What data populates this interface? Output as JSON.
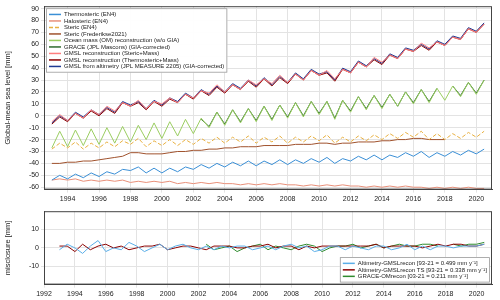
{
  "chart_data": [
    {
      "type": "line",
      "y_label": "Global-mean sea level [mm]",
      "xlim": [
        1992.5,
        2021
      ],
      "xticks": [
        1994,
        1996,
        1998,
        2000,
        2002,
        2004,
        2006,
        2008,
        2010,
        2012,
        2014,
        2016,
        2018,
        2020
      ],
      "ylim": [
        -62,
        92
      ],
      "yticks": [
        -60,
        -50,
        -40,
        -30,
        -20,
        -10,
        0,
        10,
        20,
        30,
        40,
        50,
        60,
        70,
        80,
        90
      ],
      "grid": true,
      "legend": "upper left",
      "x": [
        1993,
        1993.5,
        1994,
        1994.5,
        1995,
        1995.5,
        1996,
        1996.5,
        1997,
        1997.5,
        1998,
        1998.5,
        1999,
        1999.5,
        2000,
        2000.5,
        2001,
        2001.5,
        2002,
        2002.5,
        2003,
        2003.5,
        2004,
        2004.5,
        2005,
        2005.5,
        2006,
        2006.5,
        2007,
        2007.5,
        2008,
        2008.5,
        2009,
        2009.5,
        2010,
        2010.5,
        2011,
        2011.5,
        2012,
        2012.5,
        2013,
        2013.5,
        2014,
        2014.5,
        2015,
        2015.5,
        2016,
        2016.5,
        2017,
        2017.5,
        2018,
        2018.5,
        2019,
        2019.5,
        2020,
        2020.5
      ],
      "series": [
        {
          "name": "Thermosteric (EN4)",
          "color": "#3a8fd6",
          "values": [
            -54,
            -50,
            -53,
            -49,
            -52,
            -48,
            -51,
            -47,
            -49,
            -45,
            -46,
            -43,
            -48,
            -44,
            -48,
            -44,
            -47,
            -43,
            -45,
            -41,
            -44,
            -40,
            -43,
            -39,
            -42,
            -38,
            -42,
            -38,
            -41,
            -37,
            -41,
            -37,
            -40,
            -36,
            -39,
            -35,
            -40,
            -36,
            -38,
            -34,
            -37,
            -33,
            -37,
            -33,
            -35,
            -31,
            -34,
            -30,
            -35,
            -31,
            -34,
            -30,
            -33,
            -29,
            -32,
            -28
          ]
        },
        {
          "name": "Halosteric (EN4)",
          "color": "#e8907a",
          "values": [
            -54,
            -53,
            -54,
            -53,
            -55,
            -54,
            -55,
            -54,
            -55,
            -54,
            -56,
            -55,
            -56,
            -55,
            -56,
            -55,
            -57,
            -56,
            -57,
            -56,
            -57,
            -56,
            -57,
            -57,
            -58,
            -57,
            -58,
            -57,
            -58,
            -57,
            -58,
            -58,
            -59,
            -58,
            -59,
            -58,
            -59,
            -58,
            -59,
            -59,
            -60,
            -59,
            -60,
            -59,
            -60,
            -59,
            -60,
            -60,
            -61,
            -60,
            -61,
            -60,
            -61,
            -60,
            -61,
            -61
          ]
        },
        {
          "name": "Steric (EN4)",
          "color": "#e8b040",
          "line_style": "dashed",
          "values": [
            -28,
            -23,
            -27,
            -22,
            -28,
            -23,
            -27,
            -22,
            -26,
            -21,
            -24,
            -19,
            -26,
            -21,
            -25,
            -20,
            -25,
            -20,
            -24,
            -19,
            -23,
            -18,
            -23,
            -18,
            -22,
            -17,
            -23,
            -18,
            -22,
            -17,
            -23,
            -18,
            -22,
            -17,
            -21,
            -16,
            -23,
            -18,
            -22,
            -17,
            -21,
            -16,
            -20,
            -15,
            -19,
            -14,
            -18,
            -13,
            -20,
            -15,
            -20,
            -15,
            -19,
            -14,
            -18,
            -13
          ]
        },
        {
          "name": "Steric (Frederikse2021)",
          "color": "#a0522d",
          "values": [
            -40,
            -40,
            -39,
            -39,
            -38,
            -38,
            -37,
            -36,
            -35,
            -34,
            -31,
            -31,
            -32,
            -32,
            -32,
            -31,
            -30,
            -30,
            -29,
            -29,
            -28,
            -28,
            -27,
            -27,
            -26,
            -26,
            -26,
            -25,
            -25,
            -25,
            -25,
            -24,
            -24,
            -24,
            -23,
            -23,
            -24,
            -23,
            -23,
            -22,
            -22,
            -22,
            -21,
            -21,
            -20,
            -20,
            -19,
            -19,
            -20,
            -20,
            -20,
            null,
            null,
            null,
            null,
            null
          ]
        },
        {
          "name": "Ocean mass (OM) reconstruction (w/o GIA)",
          "color": "#9acd60",
          "values": [
            -27,
            -13,
            -26,
            -12,
            -25,
            -11,
            -24,
            -10,
            -23,
            -9,
            -22,
            -8,
            -20,
            -6,
            -19,
            -5,
            -17,
            -3,
            -15,
            -2,
            -10,
            3,
            -8,
            5,
            -6,
            6,
            -5,
            8,
            -4,
            9,
            -2,
            11,
            -1,
            12,
            1,
            12,
            -3,
            13,
            3,
            16,
            5,
            17,
            6,
            18,
            8,
            20,
            10,
            22,
            11,
            23,
            13,
            25,
            16,
            28,
            18,
            30
          ]
        },
        {
          "name": "GRACE (JPL Mascons) (GIA-corrected)",
          "color": "#2e6b2e",
          "values": [
            null,
            null,
            null,
            null,
            null,
            null,
            null,
            null,
            null,
            null,
            null,
            null,
            null,
            null,
            null,
            null,
            null,
            null,
            null,
            -3,
            -9,
            3,
            -7,
            5,
            -5,
            6,
            -4,
            8,
            -3,
            9,
            -1,
            11,
            0,
            12,
            2,
            12,
            -2,
            13,
            4,
            16,
            6,
            17,
            7,
            18,
            8,
            20,
            11,
            22,
            12,
            23,
            null,
            25,
            17,
            28,
            19,
            30
          ]
        },
        {
          "name": "GMSL reconstruction (Steric+Mass)",
          "color": "#ff7f7f",
          "values": [
            -5,
            1,
            -4,
            2,
            -2,
            5,
            1,
            8,
            4,
            11,
            8,
            13,
            6,
            12,
            10,
            15,
            11,
            18,
            15,
            21,
            19,
            26,
            20,
            26,
            22,
            30,
            26,
            31,
            27,
            34,
            28,
            35,
            30,
            38,
            34,
            38,
            31,
            39,
            36,
            45,
            41,
            49,
            45,
            51,
            48,
            56,
            54,
            61,
            57,
            62,
            59,
            66,
            64,
            73,
            70,
            77
          ]
        },
        {
          "name": "GMSL reconstruction (Thermosteric+Mass)",
          "color": "#8b0000",
          "values": [
            -7,
            -1,
            -5,
            2,
            -2,
            4,
            0,
            6,
            2,
            11,
            8,
            11,
            5,
            12,
            8,
            14,
            11,
            18,
            14,
            21,
            17,
            24,
            19,
            26,
            22,
            29,
            24,
            31,
            25,
            32,
            27,
            35,
            30,
            38,
            34,
            36,
            29,
            39,
            36,
            45,
            41,
            47,
            43,
            51,
            48,
            56,
            54,
            59,
            55,
            62,
            59,
            66,
            64,
            73,
            70,
            77
          ]
        },
        {
          "name": "GMSL from altimetry (JPL MEASURE 2205) (GIA-corrected)",
          "color": "#1f3a93",
          "values": [
            -6,
            0,
            -4,
            3,
            -1,
            5,
            1,
            7,
            3,
            12,
            9,
            12,
            6,
            13,
            9,
            15,
            12,
            19,
            15,
            22,
            18,
            25,
            20,
            27,
            23,
            30,
            25,
            32,
            26,
            33,
            28,
            36,
            31,
            39,
            35,
            37,
            30,
            40,
            37,
            46,
            42,
            48,
            44,
            52,
            49,
            57,
            55,
            60,
            56,
            63,
            60,
            67,
            65,
            74,
            71,
            78
          ]
        }
      ]
    },
    {
      "type": "line",
      "y_label": "misclosure [mm]",
      "xlim": [
        1992,
        2021
      ],
      "xticks": [
        1992,
        1994,
        1996,
        1998,
        2000,
        2002,
        2004,
        2006,
        2008,
        2010,
        2012,
        2014,
        2016,
        2018,
        2020
      ],
      "ylim": [
        -20,
        20
      ],
      "yticks": [
        -10,
        0,
        10
      ],
      "grid": true,
      "legend": "lower right",
      "x": [
        1993,
        1993.5,
        1994,
        1994.5,
        1995,
        1995.5,
        1996,
        1996.5,
        1997,
        1997.5,
        1998,
        1998.5,
        1999,
        1999.5,
        2000,
        2000.5,
        2001,
        2001.5,
        2002,
        2002.5,
        2003,
        2003.5,
        2004,
        2004.5,
        2005,
        2005.5,
        2006,
        2006.5,
        2007,
        2007.5,
        2008,
        2008.5,
        2009,
        2009.5,
        2010,
        2010.5,
        2011,
        2011.5,
        2012,
        2012.5,
        2013,
        2013.5,
        2014,
        2014.5,
        2015,
        2015.5,
        2016,
        2016.5,
        2017,
        2017.5,
        2018,
        2018.5,
        2019,
        2019.5,
        2020,
        2020.5
      ],
      "series": [
        {
          "name": "Altimetry-GMSLrecon [93-21 = 0.499 mm y⁻¹]",
          "color": "#5aaee8",
          "values": [
            -1,
            2,
            0,
            -3,
            1,
            4,
            -2,
            0,
            -1,
            3,
            1,
            -2,
            0,
            2,
            -1,
            1,
            2,
            0,
            -1,
            1,
            -1,
            1,
            0,
            1,
            1,
            -1,
            0,
            1,
            -1,
            1,
            2,
            0,
            1,
            -2,
            -1,
            1,
            1,
            -1,
            1,
            0,
            -1,
            1,
            1,
            -1,
            0,
            2,
            -1,
            1,
            -1,
            1,
            1,
            0,
            1,
            1,
            1,
            2
          ]
        },
        {
          "name": "Altimetry-GMSLrecon TS [93-21 = 0.338 mm y⁻¹]",
          "color": "#8b0000",
          "values": [
            1,
            1,
            -2,
            2,
            -1,
            1,
            2,
            0,
            1,
            -1,
            0,
            1,
            1,
            2,
            -1,
            0,
            1,
            1,
            0,
            -1,
            1,
            1,
            1,
            0,
            0,
            1,
            1,
            2,
            0,
            1,
            1,
            -1,
            1,
            0,
            1,
            1,
            1,
            1,
            1,
            1,
            1,
            2,
            0,
            1,
            1,
            1,
            1,
            0,
            1,
            2,
            1,
            2,
            2,
            1,
            1,
            2
          ]
        },
        {
          "name": "GRACE-OMrecon [03-21 = 0.211 mm y⁻¹]",
          "color": "#2e8b2e",
          "values": [
            null,
            null,
            null,
            null,
            null,
            null,
            null,
            null,
            null,
            null,
            null,
            null,
            null,
            null,
            null,
            null,
            null,
            null,
            null,
            2,
            -1,
            0,
            1,
            -2,
            0,
            1,
            2,
            -1,
            1,
            0,
            -1,
            1,
            2,
            1,
            -2,
            0,
            1,
            1,
            2,
            0,
            1,
            2,
            0,
            1,
            2,
            1,
            1,
            2,
            2,
            1,
            null,
            2,
            1,
            2,
            2,
            3
          ]
        }
      ]
    }
  ]
}
